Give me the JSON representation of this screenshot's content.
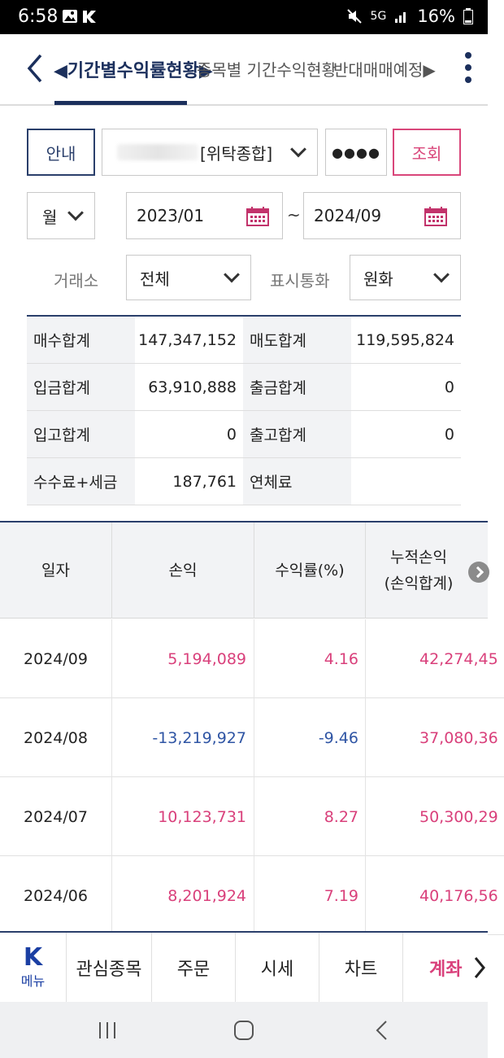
{
  "status_bar": {
    "time": "6:58",
    "signal": "5G",
    "battery": "16%"
  },
  "tabs": [
    {
      "label": "◀기간별수익률현황▶",
      "active": true
    },
    {
      "label": "종목별 기간수익현황",
      "active": false
    },
    {
      "label": "반대매매예정▶",
      "active": false
    }
  ],
  "controls": {
    "guide_button": "안내",
    "account_type": "[위탁종합]",
    "password_mask": "●●●●",
    "query_button": "조회",
    "period_unit": "월",
    "date_from": "2023/01",
    "date_separator": "~",
    "date_to": "2024/09",
    "exchange_label": "거래소",
    "exchange_value": "전체",
    "currency_label": "표시통화",
    "currency_value": "원화"
  },
  "summary": [
    {
      "label1": "매수합계",
      "value1": "147,347,152",
      "label2": "매도합계",
      "value2": "119,595,824"
    },
    {
      "label1": "입금합계",
      "value1": "63,910,888",
      "label2": "출금합계",
      "value2": "0"
    },
    {
      "label1": "입고합계",
      "value1": "0",
      "label2": "출고합계",
      "value2": "0"
    },
    {
      "label1": "수수료+세금",
      "value1": "187,761",
      "label2": "연체료",
      "value2": ""
    }
  ],
  "grid": {
    "headers": {
      "date": "일자",
      "pl": "손익",
      "rate": "수익률(%)",
      "cum_line1": "누적손익",
      "cum_line2": "(손익합계)"
    },
    "rows": [
      {
        "date": "2024/09",
        "pl": "5,194,089",
        "rate": "4.16",
        "cum": "42,274,45",
        "sign": "pos"
      },
      {
        "date": "2024/08",
        "pl": "-13,219,927",
        "rate": "-9.46",
        "cum": "37,080,36",
        "sign": "neg"
      },
      {
        "date": "2024/07",
        "pl": "10,123,731",
        "rate": "8.27",
        "cum": "50,300,29",
        "sign": "pos"
      },
      {
        "date": "2024/06",
        "pl": "8,201,924",
        "rate": "7.19",
        "cum": "40,176,56",
        "sign": "pos"
      }
    ]
  },
  "bottom_nav": {
    "menu_logo": "K",
    "menu_label": "메뉴",
    "items": [
      "관심종목",
      "주문",
      "시세",
      "차트",
      "계좌"
    ],
    "active_item": "계좌"
  },
  "colors": {
    "brand_navy": "#1b2f5c",
    "accent_pink": "#d9407b",
    "negative_blue": "#2f55a4"
  }
}
